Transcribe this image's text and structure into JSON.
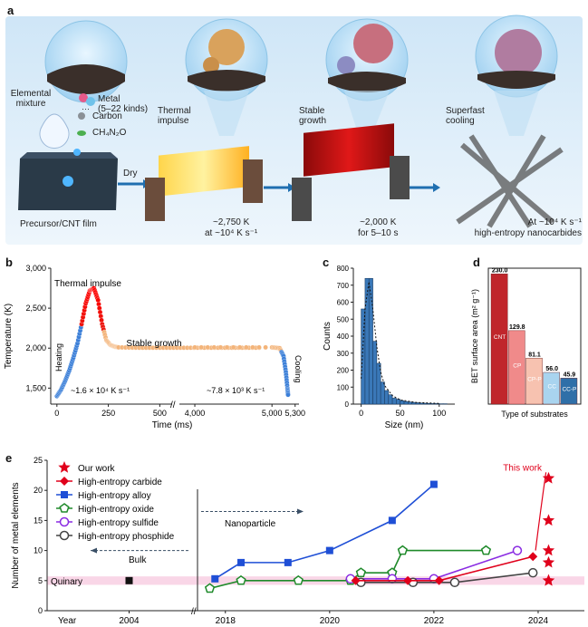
{
  "panel_a": {
    "letter": "a",
    "captions": {
      "elemental_mixture": [
        "Elemental",
        "mixture"
      ],
      "legend_metal": [
        "Metal",
        "(5–22 kinds)"
      ],
      "legend_dots": "···",
      "legend_carbon": "Carbon",
      "legend_ch4n2o": "CH₄N₂O",
      "precursor": "Precursor/CNT film",
      "dry": "Dry",
      "thermal_impulse": [
        "Thermal",
        "impulse"
      ],
      "stable_growth": [
        "Stable",
        "growth"
      ],
      "superfast_cooling": [
        "Superfast",
        "cooling"
      ],
      "cond1": [
        "~2,750 K",
        "at ~10⁴ K s⁻¹"
      ],
      "cond2": [
        "~2,000 K",
        "for 5–10 s"
      ],
      "cond3": [
        "At ~10⁴ K s⁻¹",
        "high-entropy nanocarbides"
      ]
    },
    "colors": {
      "bg_top": "#cfe6f7",
      "bg_bottom": "#eaf4fb",
      "accent": "#2a6fb5"
    }
  },
  "panel_b": {
    "letter": "b",
    "chart_data": {
      "type": "line",
      "xlabel": "Time (ms)",
      "ylabel": "Temperature (K)",
      "ylim": [
        1300,
        3000
      ],
      "yticks": [
        "1,500",
        "2,000",
        "2,500",
        "3,000"
      ],
      "xticks_left": [
        "0",
        "250",
        "500"
      ],
      "xticks_right": [
        "4,000",
        "5,000",
        "5,300"
      ],
      "annotations": {
        "thermal_impulse": "Thermal impulse",
        "stable_growth": "Stable growth",
        "heating": "Heating",
        "cooling": "Cooling",
        "rate_heat": "~1.6 × 10⁴ K s⁻¹",
        "rate_cool": "~7.8 × 10³ K s⁻¹"
      },
      "series": [
        {
          "x": [
            0,
            20,
            40,
            60,
            80,
            100,
            120,
            140,
            160,
            180,
            200,
            220,
            240,
            260,
            280,
            300
          ],
          "y": [
            1400,
            1480,
            1590,
            1720,
            1880,
            2060,
            2300,
            2560,
            2720,
            2750,
            2600,
            2300,
            2100,
            2040,
            2020,
            2010
          ]
        },
        {
          "x": [
            300,
            400,
            500,
            600,
            700,
            800,
            900,
            1000
          ],
          "y": [
            2010,
            2005,
            2005,
            2005,
            2005,
            2005,
            2005,
            2005
          ]
        },
        {
          "x": [
            4000,
            4500,
            5000,
            5100,
            5150,
            5180,
            5200,
            5210
          ],
          "y": [
            2010,
            2010,
            2010,
            2000,
            1900,
            1700,
            1500,
            1400
          ]
        }
      ]
    }
  },
  "panel_c": {
    "letter": "c",
    "chart_data": {
      "type": "bar",
      "xlabel": "Size (nm)",
      "ylabel": "Counts",
      "ylim": [
        0,
        800
      ],
      "xlim": [
        -10,
        120
      ],
      "yticks": [
        "0",
        "100",
        "200",
        "300",
        "400",
        "500",
        "600",
        "700",
        "800"
      ],
      "xticks": [
        "0",
        "50",
        "100"
      ],
      "bin_width": 5,
      "bin_starts": [
        0,
        5,
        10,
        15,
        20,
        25,
        30,
        35,
        40,
        45,
        50,
        55,
        60,
        65,
        70,
        75,
        80,
        85,
        90,
        95,
        100,
        105
      ],
      "values": [
        560,
        740,
        740,
        370,
        240,
        130,
        80,
        55,
        35,
        28,
        20,
        15,
        12,
        10,
        8,
        6,
        5,
        4,
        3,
        3,
        2,
        2
      ],
      "fit_x": [
        0,
        5,
        10,
        15,
        20,
        25,
        30,
        40,
        50,
        70,
        100
      ],
      "fit_y": [
        150,
        560,
        720,
        560,
        340,
        190,
        110,
        50,
        25,
        10,
        4
      ]
    }
  },
  "panel_d": {
    "letter": "d",
    "chart_data": {
      "type": "bar",
      "xlabel": "Type of substrates",
      "ylabel": "BET surface area (m² g⁻¹)",
      "ylim": [
        0,
        240
      ],
      "categories": [
        "CNT",
        "CP",
        "CP-P",
        "CC",
        "CC-P"
      ],
      "values": [
        230.0,
        129.8,
        81.1,
        56.0,
        45.9
      ],
      "value_labels": [
        "230.0",
        "129.8",
        "81.1",
        "56.0",
        "45.9"
      ],
      "colors": [
        "#c0262b",
        "#f08a8a",
        "#f7c2b0",
        "#a9d4ef",
        "#2f6fa8"
      ]
    }
  },
  "panel_e": {
    "letter": "e",
    "chart_data": {
      "type": "scatter",
      "ylabel": "Number of metal elements",
      "xlabel": "Year",
      "ylim": [
        0,
        25
      ],
      "yticks": [
        "0",
        "5",
        "10",
        "15",
        "20",
        "25"
      ],
      "xticks": [
        "2004",
        "2018",
        "2020",
        "2022",
        "2024"
      ],
      "quinary_label": "Quinary",
      "bulk_label": "Bulk",
      "nanoparticle_label": "Nanoparticle",
      "this_work_label": "This work",
      "legend": [
        "Our work",
        "High-entropy carbide",
        "High-entropy alloy",
        "High-entropy oxide",
        "High-entropy sulfide",
        "High-entropy phosphide"
      ],
      "bulk_point": {
        "x": 2004,
        "y": 5
      },
      "series": [
        {
          "name": "High-entropy alloy",
          "color": "#1f4fd6",
          "marker": "square",
          "x": [
            2017.8,
            2018.3,
            2019.2,
            2020.0,
            2021.2,
            2022.0
          ],
          "y": [
            5.3,
            8,
            8,
            10,
            15,
            21
          ]
        },
        {
          "name": "High-entropy oxide",
          "color": "#1f8a2a",
          "marker": "pentagon",
          "x": [
            2017.7,
            2018.3,
            2019.4,
            2020.4,
            2020.6,
            2021.2,
            2021.4,
            2023.0
          ],
          "y": [
            3.7,
            5,
            5,
            5,
            6.3,
            6.3,
            10,
            10
          ]
        },
        {
          "name": "High-entropy sulfide",
          "color": "#8a2be2",
          "marker": "circle",
          "x": [
            2020.4,
            2021.2,
            2022.0,
            2023.6
          ],
          "y": [
            5.3,
            5.3,
            5.3,
            10
          ]
        },
        {
          "name": "High-entropy phosphide",
          "color": "#444444",
          "marker": "circle",
          "x": [
            2020.6,
            2021.6,
            2022.4,
            2023.9
          ],
          "y": [
            4.7,
            4.7,
            4.7,
            6.3
          ]
        },
        {
          "name": "High-entropy carbide",
          "color": "#e0001b",
          "marker": "diamond",
          "x": [
            2020.5,
            2021.5,
            2022.1,
            2023.9
          ],
          "y": [
            5,
            5,
            5,
            9
          ]
        },
        {
          "name": "Our work",
          "color": "#e0001b",
          "marker": "star",
          "x": [
            2024.2,
            2024.2,
            2024.2,
            2024.2,
            2024.2,
            2024.2
          ],
          "y": [
            5,
            8,
            10,
            15,
            22,
            5
          ]
        }
      ]
    }
  }
}
